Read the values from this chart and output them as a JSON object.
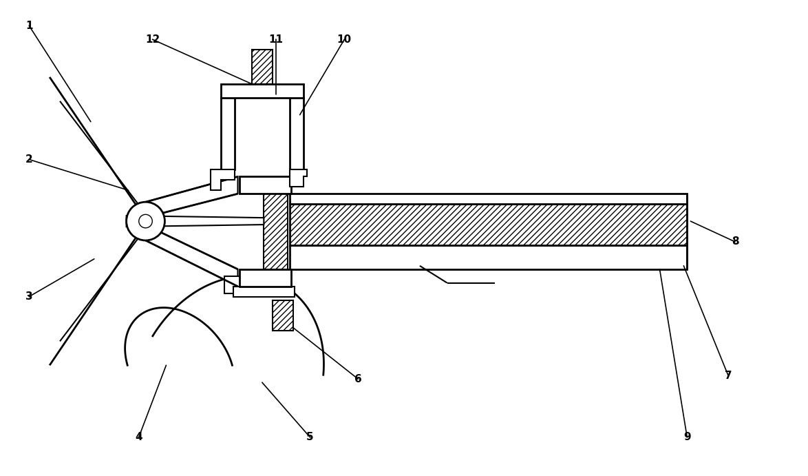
{
  "bg_color": "#ffffff",
  "line_color": "#000000",
  "lw": 1.5,
  "lw_thick": 2.0,
  "hatch_density": "////",
  "label_fontsize": 11,
  "figsize": [
    11.74,
    6.91
  ],
  "dpi": 100,
  "xlim": [
    0,
    117.4
  ],
  "ylim": [
    0,
    69.1
  ]
}
